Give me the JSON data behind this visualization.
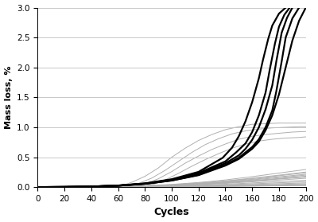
{
  "title": "",
  "xlabel": "Cycles",
  "ylabel": "Mass loss, %",
  "xlim": [
    0,
    200
  ],
  "ylim": [
    0.0,
    3.0
  ],
  "xticks": [
    0,
    20,
    40,
    60,
    80,
    100,
    120,
    140,
    160,
    180,
    200
  ],
  "yticks": [
    0.0,
    0.5,
    1.0,
    1.5,
    2.0,
    2.5,
    3.0
  ],
  "dark_lines": [
    {
      "x": [
        0,
        20,
        40,
        60,
        80,
        100,
        120,
        140,
        150,
        160,
        165,
        170,
        175,
        180,
        185,
        190,
        195,
        200
      ],
      "y": [
        0,
        0.003,
        0.01,
        0.025,
        0.055,
        0.11,
        0.2,
        0.36,
        0.47,
        0.64,
        0.76,
        0.95,
        1.2,
        1.55,
        2.0,
        2.45,
        2.78,
        3.0
      ]
    },
    {
      "x": [
        0,
        20,
        40,
        60,
        80,
        100,
        120,
        140,
        150,
        160,
        165,
        170,
        175,
        178,
        182,
        185,
        190,
        195
      ],
      "y": [
        0,
        0.003,
        0.01,
        0.025,
        0.055,
        0.112,
        0.205,
        0.375,
        0.49,
        0.67,
        0.8,
        1.0,
        1.28,
        1.6,
        2.1,
        2.5,
        2.82,
        3.0
      ]
    },
    {
      "x": [
        0,
        20,
        40,
        60,
        80,
        100,
        120,
        140,
        150,
        155,
        160,
        165,
        170,
        175,
        178,
        182,
        186,
        190
      ],
      "y": [
        0,
        0.003,
        0.01,
        0.025,
        0.058,
        0.118,
        0.218,
        0.4,
        0.53,
        0.64,
        0.79,
        1.0,
        1.3,
        1.7,
        2.1,
        2.58,
        2.83,
        3.0
      ]
    },
    {
      "x": [
        0,
        20,
        40,
        60,
        80,
        100,
        120,
        140,
        148,
        155,
        160,
        165,
        170,
        173,
        177,
        180,
        184,
        188
      ],
      "y": [
        0,
        0.003,
        0.01,
        0.026,
        0.06,
        0.125,
        0.235,
        0.43,
        0.58,
        0.73,
        0.92,
        1.2,
        1.58,
        1.95,
        2.4,
        2.68,
        2.88,
        3.0
      ]
    },
    {
      "x": [
        0,
        20,
        40,
        60,
        80,
        100,
        120,
        138,
        145,
        150,
        155,
        160,
        165,
        168,
        172,
        175,
        180,
        185
      ],
      "y": [
        0,
        0.003,
        0.01,
        0.027,
        0.062,
        0.132,
        0.255,
        0.49,
        0.66,
        0.85,
        1.1,
        1.42,
        1.82,
        2.12,
        2.48,
        2.7,
        2.9,
        3.0
      ]
    }
  ],
  "light_lines_regular": [
    {
      "x": [
        0,
        20,
        40,
        60,
        80,
        100,
        120,
        140,
        160,
        180,
        200
      ],
      "y": [
        0,
        0.002,
        0.005,
        0.012,
        0.025,
        0.045,
        0.078,
        0.12,
        0.175,
        0.235,
        0.295
      ]
    },
    {
      "x": [
        0,
        20,
        40,
        60,
        80,
        100,
        120,
        140,
        160,
        180,
        200
      ],
      "y": [
        0,
        0.002,
        0.005,
        0.011,
        0.022,
        0.04,
        0.068,
        0.104,
        0.15,
        0.2,
        0.252
      ]
    },
    {
      "x": [
        0,
        20,
        40,
        60,
        80,
        100,
        120,
        140,
        160,
        180,
        200
      ],
      "y": [
        0,
        0.001,
        0.004,
        0.009,
        0.019,
        0.034,
        0.058,
        0.09,
        0.13,
        0.172,
        0.215
      ]
    },
    {
      "x": [
        0,
        20,
        40,
        60,
        80,
        100,
        120,
        140,
        160,
        180,
        200
      ],
      "y": [
        0,
        0.001,
        0.003,
        0.008,
        0.016,
        0.029,
        0.049,
        0.075,
        0.108,
        0.143,
        0.18
      ]
    },
    {
      "x": [
        0,
        20,
        40,
        60,
        80,
        100,
        120,
        140,
        160,
        180,
        200
      ],
      "y": [
        0,
        0.001,
        0.003,
        0.006,
        0.013,
        0.024,
        0.04,
        0.062,
        0.089,
        0.118,
        0.148
      ]
    },
    {
      "x": [
        0,
        20,
        40,
        60,
        80,
        100,
        120,
        140,
        160,
        180,
        200
      ],
      "y": [
        0,
        0.001,
        0.002,
        0.005,
        0.01,
        0.018,
        0.031,
        0.048,
        0.07,
        0.092,
        0.115
      ]
    },
    {
      "x": [
        0,
        20,
        40,
        60,
        80,
        100,
        120,
        140,
        160,
        180,
        200
      ],
      "y": [
        0,
        0.001,
        0.002,
        0.004,
        0.008,
        0.015,
        0.025,
        0.038,
        0.055,
        0.073,
        0.091
      ]
    },
    {
      "x": [
        0,
        20,
        40,
        60,
        80,
        100,
        120,
        140,
        160,
        180,
        200
      ],
      "y": [
        0,
        0.0005,
        0.001,
        0.003,
        0.006,
        0.011,
        0.019,
        0.03,
        0.043,
        0.057,
        0.071
      ]
    },
    {
      "x": [
        0,
        20,
        40,
        60,
        80,
        100,
        120,
        140,
        160,
        180,
        200
      ],
      "y": [
        0,
        0.0004,
        0.001,
        0.002,
        0.005,
        0.009,
        0.015,
        0.023,
        0.033,
        0.044,
        0.055
      ]
    },
    {
      "x": [
        0,
        20,
        40,
        60,
        80,
        100,
        120,
        140,
        160,
        180,
        200
      ],
      "y": [
        0,
        0.0003,
        0.0008,
        0.002,
        0.004,
        0.007,
        0.012,
        0.018,
        0.026,
        0.034,
        0.043
      ]
    },
    {
      "x": [
        0,
        20,
        40,
        60,
        80,
        100,
        120,
        140,
        160,
        180,
        200
      ],
      "y": [
        0,
        0.0002,
        0.0006,
        0.001,
        0.003,
        0.005,
        0.009,
        0.014,
        0.02,
        0.027,
        0.033
      ]
    },
    {
      "x": [
        0,
        20,
        40,
        60,
        80,
        100,
        120,
        140,
        160,
        180,
        200
      ],
      "y": [
        0,
        0.0002,
        0.0005,
        0.001,
        0.002,
        0.004,
        0.007,
        0.011,
        0.016,
        0.021,
        0.026
      ]
    },
    {
      "x": [
        0,
        20,
        40,
        60,
        80,
        100,
        120,
        140,
        160,
        180,
        200
      ],
      "y": [
        0,
        0.001,
        0.003,
        0.007,
        0.015,
        0.027,
        0.046,
        0.071,
        0.102,
        0.135,
        0.17
      ]
    },
    {
      "x": [
        0,
        20,
        40,
        60,
        80,
        100,
        120,
        140,
        160,
        180,
        200
      ],
      "y": [
        0,
        0.001,
        0.003,
        0.007,
        0.015,
        0.027,
        0.047,
        0.073,
        0.105,
        0.14,
        0.175
      ]
    },
    {
      "x": [
        0,
        20,
        40,
        60,
        80,
        100,
        120,
        140,
        160,
        180,
        200
      ],
      "y": [
        0,
        0.001,
        0.003,
        0.008,
        0.017,
        0.032,
        0.054,
        0.084,
        0.12,
        0.16,
        0.2
      ]
    },
    {
      "x": [
        0,
        20,
        40,
        60,
        80,
        100,
        120,
        140,
        160,
        180,
        200
      ],
      "y": [
        0,
        0.001,
        0.004,
        0.009,
        0.02,
        0.037,
        0.063,
        0.098,
        0.142,
        0.19,
        0.24
      ]
    }
  ],
  "light_lines_steep": [
    {
      "x": [
        60,
        70,
        80,
        90,
        100,
        110,
        120,
        130,
        140,
        150,
        160,
        170,
        180,
        190,
        200
      ],
      "y": [
        0.0,
        0.08,
        0.18,
        0.32,
        0.5,
        0.65,
        0.78,
        0.88,
        0.96,
        1.01,
        1.05,
        1.06,
        1.07,
        1.07,
        1.07
      ]
    },
    {
      "x": [
        65,
        75,
        85,
        95,
        105,
        115,
        125,
        135,
        145,
        155,
        165,
        175,
        185,
        195,
        200
      ],
      "y": [
        0.0,
        0.06,
        0.15,
        0.28,
        0.43,
        0.58,
        0.71,
        0.81,
        0.89,
        0.94,
        0.97,
        0.99,
        1.0,
        1.01,
        1.01
      ]
    },
    {
      "x": [
        70,
        80,
        90,
        100,
        110,
        120,
        130,
        140,
        150,
        160,
        170,
        180,
        190,
        200
      ],
      "y": [
        0.0,
        0.05,
        0.14,
        0.26,
        0.4,
        0.52,
        0.63,
        0.72,
        0.8,
        0.85,
        0.88,
        0.9,
        0.92,
        0.93
      ]
    },
    {
      "x": [
        75,
        85,
        95,
        105,
        115,
        125,
        135,
        145,
        155,
        165,
        175,
        185,
        195,
        200
      ],
      "y": [
        0.0,
        0.04,
        0.12,
        0.23,
        0.35,
        0.46,
        0.56,
        0.65,
        0.72,
        0.77,
        0.8,
        0.82,
        0.83,
        0.84
      ]
    }
  ],
  "dark_color": "#000000",
  "light_color": "#b0b0b0",
  "dark_linewidth": 1.6,
  "light_linewidth": 0.7,
  "bg_color": "#ffffff",
  "xlabel_fontsize": 9,
  "ylabel_fontsize": 8,
  "tick_fontsize": 7.5
}
